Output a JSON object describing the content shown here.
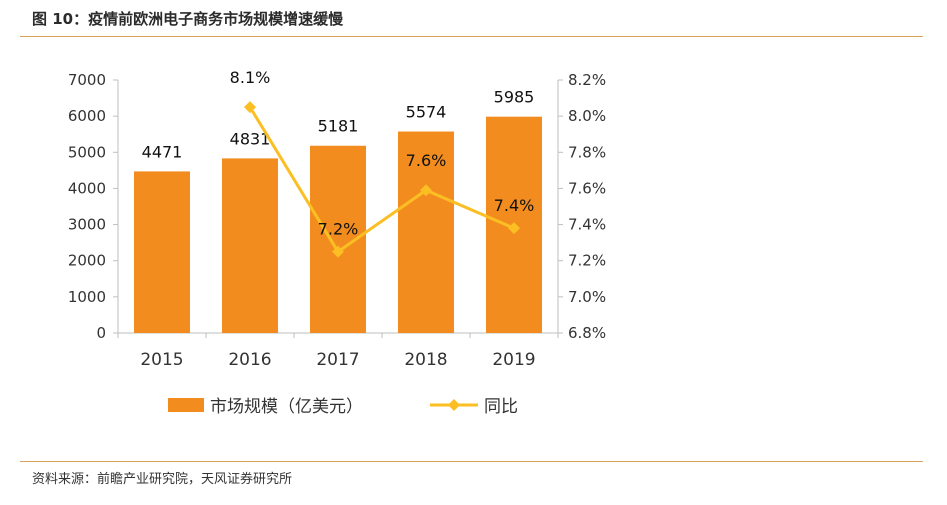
{
  "figure": {
    "title": "图 10：疫情前欧洲电子商务市场规模增速缓慢",
    "source": "资料来源：前瞻产业研究院，天风证券研究所"
  },
  "colors": {
    "bar": "#f28c1e",
    "line": "#fbbf24",
    "rule": "#d9a15a",
    "axis": "#bfbfbf"
  },
  "chart_data": {
    "type": "bar",
    "categories": [
      "2015",
      "2016",
      "2017",
      "2018",
      "2019"
    ],
    "series": [
      {
        "name": "市场规模（亿美元）",
        "kind": "bar",
        "axis": "left",
        "values": [
          4471,
          4831,
          5181,
          5574,
          5985
        ],
        "labels": [
          "4471",
          "4831",
          "5181",
          "5574",
          "5985"
        ]
      },
      {
        "name": "同比",
        "kind": "line",
        "axis": "right",
        "values": [
          null,
          8.05,
          7.25,
          7.59,
          7.38
        ],
        "labels": [
          "",
          "8.1%",
          "7.2%",
          "7.6%",
          "7.4%"
        ]
      }
    ],
    "y_left": {
      "min": 0,
      "max": 7000,
      "ticks": [
        "0",
        "1000",
        "2000",
        "3000",
        "4000",
        "5000",
        "6000",
        "7000"
      ]
    },
    "y_right": {
      "min": 6.8,
      "max": 8.2,
      "ticks": [
        "6.8%",
        "7.0%",
        "7.2%",
        "7.4%",
        "7.6%",
        "7.8%",
        "8.0%",
        "8.2%"
      ]
    },
    "legend": [
      "市场规模（亿美元）",
      "同比"
    ],
    "legend_position": "bottom",
    "grid": false
  }
}
